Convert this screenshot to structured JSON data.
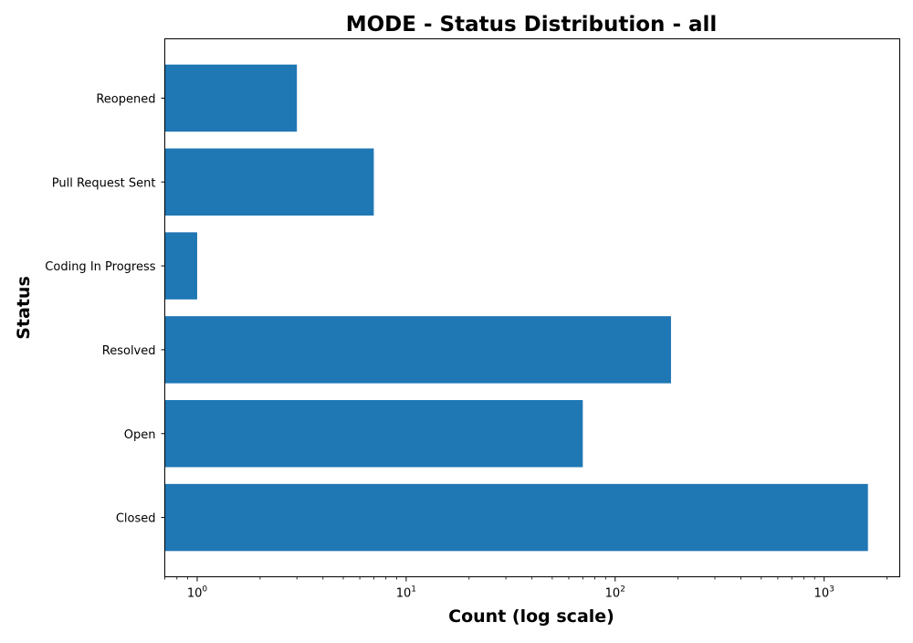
{
  "chart_data": {
    "type": "bar",
    "orientation": "horizontal",
    "title": "MODE - Status Distribution - all",
    "xlabel": "Count (log scale)",
    "ylabel": "Status",
    "x_scale": "log",
    "xlim": [
      0.7,
      2300
    ],
    "x_tick_labels": [
      {
        "value": 1,
        "base": "10",
        "exp": "0"
      },
      {
        "value": 10,
        "base": "10",
        "exp": "1"
      },
      {
        "value": 100,
        "base": "10",
        "exp": "2"
      },
      {
        "value": 1000,
        "base": "10",
        "exp": "3"
      }
    ],
    "categories": [
      "Closed",
      "Open",
      "Resolved",
      "Coding In Progress",
      "Pull Request Sent",
      "Reopened"
    ],
    "values": [
      1620,
      70,
      185,
      1,
      7,
      3
    ],
    "bar_color": "#1f77b4",
    "grid": false,
    "legend": "none"
  }
}
